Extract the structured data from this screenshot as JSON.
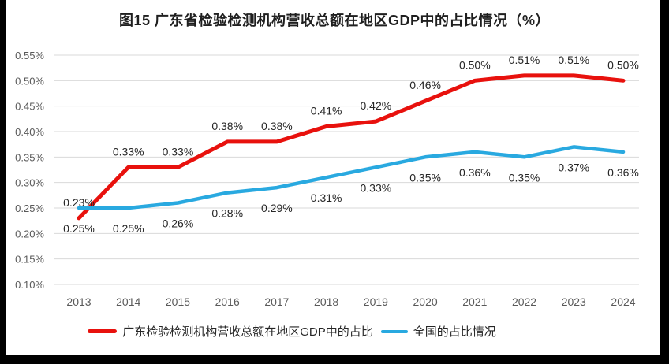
{
  "chart_data": {
    "type": "line",
    "title": "图15  广东省检验检测机构营收总额在地区GDP中的占比情况（%）",
    "x": [
      "2013",
      "2014",
      "2015",
      "2016",
      "2017",
      "2018",
      "2019",
      "2020",
      "2021",
      "2022",
      "2023",
      "2024"
    ],
    "series": [
      {
        "name": "广东检验检测机构营收总额在地区GDP中的占比",
        "color": "#E8110D",
        "values": [
          0.23,
          0.33,
          0.33,
          0.38,
          0.38,
          0.41,
          0.42,
          0.46,
          0.5,
          0.51,
          0.51,
          0.5
        ],
        "labels": [
          "0.23%",
          "0.33%",
          "0.33%",
          "0.38%",
          "0.38%",
          "0.41%",
          "0.42%",
          "0.46%",
          "0.50%",
          "0.51%",
          "0.51%",
          "0.50%"
        ],
        "label_position": "above",
        "stroke_width": 5
      },
      {
        "name": "全国的占比情况",
        "color": "#29A9E0",
        "values": [
          0.25,
          0.25,
          0.26,
          0.28,
          0.29,
          0.31,
          0.33,
          0.35,
          0.36,
          0.35,
          0.37,
          0.36
        ],
        "labels": [
          "0.25%",
          "0.25%",
          "0.26%",
          "0.28%",
          "0.29%",
          "0.31%",
          "0.33%",
          "0.35%",
          "0.36%",
          "0.35%",
          "0.37%",
          "0.36%"
        ],
        "label_position": "below",
        "stroke_width": 4.5
      }
    ],
    "ylim": [
      0.1,
      0.55
    ],
    "y_ticks": [
      "0.55%",
      "0.50%",
      "0.45%",
      "0.40%",
      "0.35%",
      "0.30%",
      "0.25%",
      "0.20%",
      "0.15%",
      "0.10%"
    ],
    "y_tick_values": [
      0.55,
      0.5,
      0.45,
      0.4,
      0.35,
      0.3,
      0.25,
      0.2,
      0.15,
      0.1
    ],
    "grid": "horizontal",
    "legend_position": "bottom"
  },
  "colors": {
    "grid": "#D9D9D9",
    "axis_text": "#595959",
    "data_label": "#262626",
    "frame": "#000000",
    "background": "#FFFFFF"
  }
}
